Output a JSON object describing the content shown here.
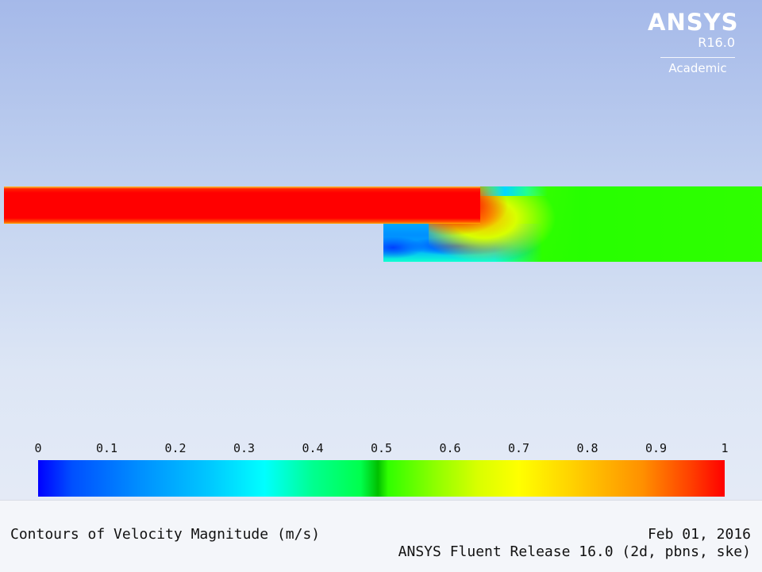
{
  "logo": {
    "brand": "ANSYS",
    "release": "R16.0",
    "edition": "Academic"
  },
  "contour_plot": {
    "quantity": "Velocity Magnitude",
    "colormap": "rainbow (blue to red)",
    "colors": {
      "min": "#0000ff",
      "mid": "#00ff00",
      "max": "#ff0000",
      "background_top": "#a5b9e9",
      "background_bottom": "#e8edf7"
    }
  },
  "colorbar": {
    "min": 0,
    "max": 1,
    "tick_labels": [
      "0",
      "0.1",
      "0.2",
      "0.3",
      "0.4",
      "0.5",
      "0.6",
      "0.7",
      "0.8",
      "0.9",
      "1"
    ]
  },
  "annotation": {
    "title": "Contours of Velocity Magnitude (m/s)",
    "date": "Feb 01, 2016",
    "release": "ANSYS Fluent Release 16.0 (2d, pbns, ske)"
  }
}
